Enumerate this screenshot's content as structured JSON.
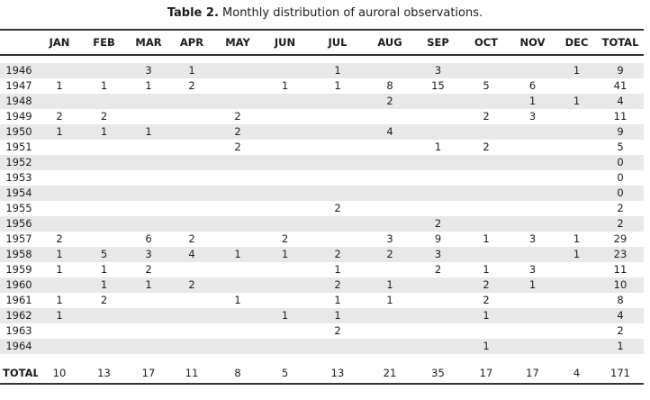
{
  "caption": {
    "label": "Table 2.",
    "text": " Monthly distribution of auroral observations."
  },
  "table": {
    "columns": [
      "JAN",
      "FEB",
      "MAR",
      "APR",
      "MAY",
      "JUN",
      "JUL",
      "AUG",
      "SEP",
      "OCT",
      "NOV",
      "DEC",
      "TOTAL"
    ],
    "rows": [
      {
        "year": "1946",
        "months": [
          "",
          "",
          "3",
          "1",
          "",
          "",
          "1",
          "",
          "3",
          "",
          "",
          "1"
        ],
        "total": "9"
      },
      {
        "year": "1947",
        "months": [
          "1",
          "1",
          "1",
          "2",
          "",
          "1",
          "1",
          "8",
          "15",
          "5",
          "6",
          ""
        ],
        "total": "41"
      },
      {
        "year": "1948",
        "months": [
          "",
          "",
          "",
          "",
          "",
          "",
          "",
          "2",
          "",
          "",
          "1",
          "1"
        ],
        "total": "4"
      },
      {
        "year": "1949",
        "months": [
          "2",
          "2",
          "",
          "",
          "2",
          "",
          "",
          "",
          "",
          "2",
          "3",
          ""
        ],
        "total": "11"
      },
      {
        "year": "1950",
        "months": [
          "1",
          "1",
          "1",
          "",
          "2",
          "",
          "",
          "4",
          "",
          "",
          "",
          ""
        ],
        "total": "9"
      },
      {
        "year": "1951",
        "months": [
          "",
          "",
          "",
          "",
          "2",
          "",
          "",
          "",
          "1",
          "2",
          "",
          ""
        ],
        "total": "5"
      },
      {
        "year": "1952",
        "months": [
          "",
          "",
          "",
          "",
          "",
          "",
          "",
          "",
          "",
          "",
          "",
          ""
        ],
        "total": "0"
      },
      {
        "year": "1953",
        "months": [
          "",
          "",
          "",
          "",
          "",
          "",
          "",
          "",
          "",
          "",
          "",
          ""
        ],
        "total": "0"
      },
      {
        "year": "1954",
        "months": [
          "",
          "",
          "",
          "",
          "",
          "",
          "",
          "",
          "",
          "",
          "",
          ""
        ],
        "total": "0"
      },
      {
        "year": "1955",
        "months": [
          "",
          "",
          "",
          "",
          "",
          "",
          "2",
          "",
          "",
          "",
          "",
          ""
        ],
        "total": "2"
      },
      {
        "year": "1956",
        "months": [
          "",
          "",
          "",
          "",
          "",
          "",
          "",
          "",
          "2",
          "",
          "",
          ""
        ],
        "total": "2"
      },
      {
        "year": "1957",
        "months": [
          "2",
          "",
          "6",
          "2",
          "",
          "2",
          "",
          "3",
          "9",
          "1",
          "3",
          "1"
        ],
        "total": "29"
      },
      {
        "year": "1958",
        "months": [
          "1",
          "5",
          "3",
          "4",
          "1",
          "1",
          "2",
          "2",
          "3",
          "",
          "",
          "1"
        ],
        "total": "23"
      },
      {
        "year": "1959",
        "months": [
          "1",
          "1",
          "2",
          "",
          "",
          "",
          "1",
          "",
          "2",
          "1",
          "3",
          ""
        ],
        "total": "11"
      },
      {
        "year": "1960",
        "months": [
          "",
          "1",
          "1",
          "2",
          "",
          "",
          "2",
          "1",
          "",
          "2",
          "1",
          ""
        ],
        "total": "10"
      },
      {
        "year": "1961",
        "months": [
          "1",
          "2",
          "",
          "",
          "1",
          "",
          "1",
          "1",
          "",
          "2",
          "",
          ""
        ],
        "total": "8"
      },
      {
        "year": "1962",
        "months": [
          "1",
          "",
          "",
          "",
          "",
          "1",
          "1",
          "",
          "",
          "1",
          "",
          ""
        ],
        "total": "4"
      },
      {
        "year": "1963",
        "months": [
          "",
          "",
          "",
          "",
          "",
          "",
          "2",
          "",
          "",
          "",
          "",
          ""
        ],
        "total": "2"
      },
      {
        "year": "1964",
        "months": [
          "",
          "",
          "",
          "",
          "",
          "",
          "",
          "",
          "",
          "1",
          "",
          ""
        ],
        "total": "1"
      }
    ],
    "total_row": {
      "label": "TOTAL",
      "months": [
        "10",
        "13",
        "17",
        "11",
        "8",
        "5",
        "13",
        "21",
        "35",
        "17",
        "17",
        "4"
      ],
      "grand_total": "171"
    }
  },
  "colors": {
    "stripe": "#e8e8e8",
    "rule": "#333333",
    "text": "#1c1c1c"
  }
}
